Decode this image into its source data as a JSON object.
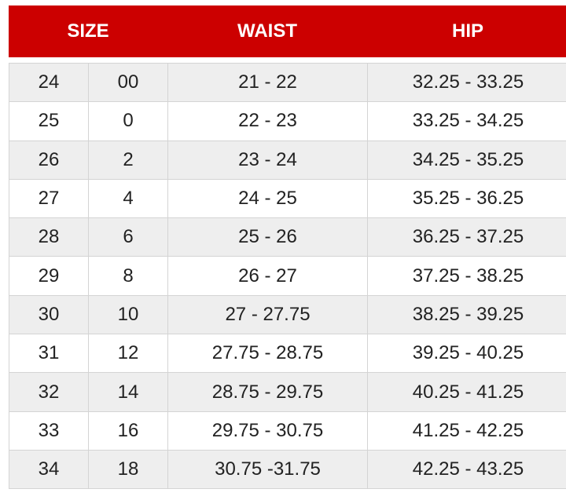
{
  "headers": {
    "size": "SIZE",
    "waist": "WAIST",
    "hip": "HIP"
  },
  "colors": {
    "header_bg": "#cc0000",
    "row_alt": "#eeeeee"
  },
  "rows": [
    [
      "24",
      "00",
      "21 - 22",
      "32.25 - 33.25"
    ],
    [
      "25",
      "0",
      "22 - 23",
      "33.25 - 34.25"
    ],
    [
      "26",
      "2",
      "23 - 24",
      "34.25 - 35.25"
    ],
    [
      "27",
      "4",
      "24 - 25",
      "35.25 - 36.25"
    ],
    [
      "28",
      "6",
      "25 - 26",
      "36.25 - 37.25"
    ],
    [
      "29",
      "8",
      "26 - 27",
      "37.25 - 38.25"
    ],
    [
      "30",
      "10",
      "27 - 27.75",
      "38.25 - 39.25"
    ],
    [
      "31",
      "12",
      "27.75 - 28.75",
      "39.25 - 40.25"
    ],
    [
      "32",
      "14",
      "28.75 - 29.75",
      "40.25 - 41.25"
    ],
    [
      "33",
      "16",
      "29.75 - 30.75",
      "41.25 - 42.25"
    ],
    [
      "34",
      "18",
      "30.75 -31.75",
      "42.25 - 43.25"
    ]
  ]
}
